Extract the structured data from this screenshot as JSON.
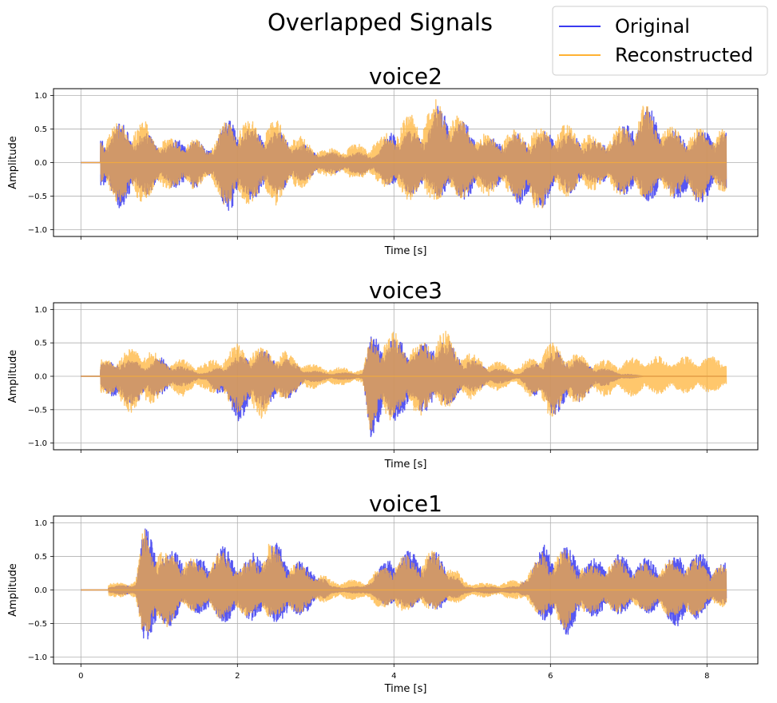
{
  "figure": {
    "suptitle": "Overlapped Signals"
  },
  "legend": {
    "placement": "top-right",
    "entries": [
      {
        "label": "Original",
        "color": "#3a3af0"
      },
      {
        "label": "Reconstructed",
        "color": "#ffb233"
      }
    ]
  },
  "colors": {
    "original": "#3a3af0",
    "reconstructed": "#ffb233",
    "overlap": "#c8874b",
    "grid": "#b0b0b0"
  },
  "chart_data": [
    {
      "type": "line",
      "title": "voice2",
      "xlabel": "Time [s]",
      "ylabel": "Amplitude",
      "xlim": [
        -0.35,
        8.65
      ],
      "ylim": [
        -1.1,
        1.1
      ],
      "xticks": [
        0,
        2,
        4,
        6,
        8
      ],
      "show_xtick_labels": false,
      "yticks": [
        -1.0,
        -0.5,
        0.0,
        0.5,
        1.0
      ],
      "grid": true,
      "duration": 8.25,
      "series": [
        {
          "name": "Original",
          "envelope": {
            "t": [
              0.3,
              0.5,
              0.8,
              1.1,
              1.4,
              1.6,
              1.9,
              2.2,
              2.5,
              2.8,
              3.1,
              3.8,
              4.0,
              4.3,
              4.6,
              4.9,
              5.2,
              5.5,
              5.8,
              6.0,
              6.3,
              6.6,
              6.9,
              7.2,
              7.5,
              7.8,
              8.1,
              8.25
            ],
            "max": [
              0.45,
              0.6,
              0.45,
              0.3,
              0.45,
              0.2,
              0.7,
              0.5,
              0.5,
              0.3,
              0.15,
              0.15,
              0.6,
              0.45,
              0.9,
              0.6,
              0.35,
              0.45,
              0.4,
              0.5,
              0.45,
              0.3,
              0.5,
              0.95,
              0.5,
              0.45,
              0.5,
              0.5
            ],
            "min": [
              -0.5,
              -0.7,
              -0.5,
              -0.35,
              -0.5,
              -0.2,
              -0.8,
              -0.55,
              -0.5,
              -0.3,
              -0.15,
              -0.2,
              -0.45,
              -0.5,
              -0.55,
              -0.6,
              -0.4,
              -0.5,
              -0.9,
              -0.5,
              -0.45,
              -0.3,
              -0.5,
              -0.6,
              -0.5,
              -0.7,
              -0.5,
              -0.45
            ]
          }
        },
        {
          "name": "Reconstructed",
          "envelope": {
            "t": [
              0.3,
              0.5,
              0.8,
              1.1,
              1.4,
              1.6,
              1.9,
              2.2,
              2.5,
              2.8,
              3.1,
              3.8,
              4.0,
              4.3,
              4.6,
              4.9,
              5.2,
              5.5,
              5.8,
              6.0,
              6.3,
              6.6,
              6.9,
              7.2,
              7.5,
              7.8,
              8.1,
              8.25
            ],
            "max": [
              0.5,
              0.6,
              0.65,
              0.35,
              0.4,
              0.25,
              0.7,
              0.65,
              0.65,
              0.4,
              0.2,
              0.35,
              0.6,
              0.8,
              1.0,
              0.65,
              0.4,
              0.5,
              0.55,
              0.55,
              0.6,
              0.35,
              0.55,
              0.9,
              0.55,
              0.5,
              0.55,
              0.5
            ],
            "min": [
              -0.45,
              -0.65,
              -0.65,
              -0.4,
              -0.45,
              -0.3,
              -0.75,
              -0.6,
              -0.65,
              -0.4,
              -0.2,
              -0.3,
              -0.5,
              -0.6,
              -0.6,
              -0.55,
              -0.5,
              -0.5,
              -0.8,
              -0.55,
              -0.5,
              -0.4,
              -0.5,
              -0.55,
              -0.5,
              -0.6,
              -0.5,
              -0.45
            ]
          }
        }
      ]
    },
    {
      "type": "line",
      "title": "voice3",
      "xlabel": "Time [s]",
      "ylabel": "Amplitude",
      "xlim": [
        -0.35,
        8.65
      ],
      "ylim": [
        -1.1,
        1.1
      ],
      "xticks": [
        0,
        2,
        4,
        6,
        8
      ],
      "show_xtick_labels": false,
      "yticks": [
        -1.0,
        -0.5,
        0.0,
        0.5,
        1.0
      ],
      "grid": true,
      "duration": 8.25,
      "series": [
        {
          "name": "Original",
          "envelope": {
            "t": [
              0.3,
              0.5,
              0.8,
              1.0,
              1.3,
              1.6,
              2.0,
              2.3,
              2.6,
              2.9,
              3.2,
              3.6,
              3.7,
              4.0,
              4.3,
              4.6,
              4.9,
              5.2,
              5.6,
              6.0,
              6.3,
              6.6,
              6.9,
              7.2,
              7.6,
              8.0,
              8.25
            ],
            "max": [
              0.2,
              0.3,
              0.2,
              0.3,
              0.15,
              0.05,
              0.3,
              0.4,
              0.3,
              0.1,
              0.05,
              0.05,
              0.65,
              0.6,
              0.45,
              0.65,
              0.3,
              0.15,
              0.05,
              0.4,
              0.3,
              0.15,
              0.05,
              0.0,
              0.0,
              0.0,
              0.0
            ],
            "min": [
              -0.2,
              -0.5,
              -0.4,
              -0.3,
              -0.15,
              -0.05,
              -0.7,
              -0.5,
              -0.4,
              -0.1,
              -0.05,
              -0.05,
              -1.0,
              -0.7,
              -0.55,
              -0.5,
              -0.3,
              -0.15,
              -0.05,
              -0.6,
              -0.45,
              -0.2,
              -0.05,
              0.0,
              0.0,
              0.0,
              0.0
            ]
          }
        },
        {
          "name": "Reconstructed",
          "envelope": {
            "t": [
              0.3,
              0.5,
              0.8,
              1.0,
              1.3,
              1.6,
              2.0,
              2.3,
              2.6,
              2.9,
              3.2,
              3.6,
              3.7,
              4.0,
              4.3,
              4.6,
              4.9,
              5.2,
              5.6,
              6.0,
              6.3,
              6.6,
              6.9,
              7.2,
              7.6,
              8.0,
              8.25
            ],
            "max": [
              0.25,
              0.35,
              0.5,
              0.3,
              0.25,
              0.2,
              0.5,
              0.45,
              0.4,
              0.2,
              0.15,
              0.1,
              0.6,
              0.7,
              0.45,
              0.75,
              0.4,
              0.25,
              0.15,
              0.55,
              0.35,
              0.25,
              0.25,
              0.3,
              0.3,
              0.3,
              0.3
            ],
            "min": [
              -0.25,
              -0.5,
              -0.6,
              -0.3,
              -0.3,
              -0.2,
              -0.55,
              -0.65,
              -0.35,
              -0.2,
              -0.15,
              -0.1,
              -0.9,
              -0.65,
              -0.6,
              -0.5,
              -0.4,
              -0.25,
              -0.15,
              -0.65,
              -0.45,
              -0.3,
              -0.3,
              -0.3,
              -0.25,
              -0.25,
              -0.25
            ]
          }
        }
      ]
    },
    {
      "type": "line",
      "title": "voice1",
      "xlabel": "Time [s]",
      "ylabel": "Amplitude",
      "xlim": [
        -0.35,
        8.65
      ],
      "ylim": [
        -1.1,
        1.1
      ],
      "xticks": [
        0,
        2,
        4,
        6,
        8
      ],
      "show_xtick_labels": true,
      "yticks": [
        -1.0,
        -0.5,
        0.0,
        0.5,
        1.0
      ],
      "grid": true,
      "duration": 8.25,
      "series": [
        {
          "name": "Original",
          "envelope": {
            "t": [
              0.4,
              0.7,
              0.8,
              0.9,
              1.1,
              1.3,
              1.5,
              1.8,
              2.1,
              2.4,
              2.7,
              3.0,
              3.2,
              3.6,
              4.0,
              4.3,
              4.6,
              4.9,
              5.2,
              5.6,
              5.9,
              6.2,
              6.5,
              6.8,
              7.1,
              7.4,
              7.7,
              8.0,
              8.25
            ],
            "max": [
              0.05,
              0.1,
              1.0,
              0.9,
              0.55,
              0.65,
              0.45,
              0.7,
              0.45,
              0.8,
              0.5,
              0.35,
              0.05,
              0.05,
              0.6,
              0.6,
              0.55,
              0.05,
              0.05,
              0.05,
              0.7,
              0.65,
              0.45,
              0.55,
              0.5,
              0.45,
              0.6,
              0.55,
              0.4
            ],
            "min": [
              -0.05,
              -0.1,
              -0.75,
              -0.8,
              -0.6,
              -0.35,
              -0.35,
              -0.5,
              -0.45,
              -0.5,
              -0.5,
              -0.25,
              -0.05,
              -0.05,
              -0.3,
              -0.25,
              -0.3,
              -0.05,
              -0.05,
              -0.05,
              -0.45,
              -0.7,
              -0.4,
              -0.4,
              -0.3,
              -0.4,
              -0.65,
              -0.3,
              -0.2
            ]
          }
        },
        {
          "name": "Reconstructed",
          "envelope": {
            "t": [
              0.4,
              0.7,
              0.8,
              0.9,
              1.1,
              1.3,
              1.5,
              1.8,
              2.1,
              2.4,
              2.7,
              3.0,
              3.2,
              3.6,
              4.0,
              4.3,
              4.6,
              4.9,
              5.2,
              5.6,
              5.9,
              6.2,
              6.5,
              6.8,
              7.1,
              7.4,
              7.7,
              8.0,
              8.25
            ],
            "max": [
              0.1,
              0.15,
              0.95,
              0.85,
              0.6,
              0.6,
              0.4,
              0.6,
              0.4,
              0.75,
              0.45,
              0.3,
              0.15,
              0.15,
              0.5,
              0.55,
              0.6,
              0.15,
              0.1,
              0.15,
              0.6,
              0.6,
              0.35,
              0.5,
              0.4,
              0.4,
              0.5,
              0.45,
              0.35
            ],
            "min": [
              -0.1,
              -0.15,
              -0.75,
              -0.75,
              -0.55,
              -0.35,
              -0.3,
              -0.45,
              -0.4,
              -0.45,
              -0.4,
              -0.25,
              -0.15,
              -0.15,
              -0.35,
              -0.3,
              -0.3,
              -0.15,
              -0.1,
              -0.15,
              -0.4,
              -0.6,
              -0.35,
              -0.35,
              -0.3,
              -0.35,
              -0.5,
              -0.3,
              -0.25
            ]
          }
        }
      ]
    }
  ]
}
